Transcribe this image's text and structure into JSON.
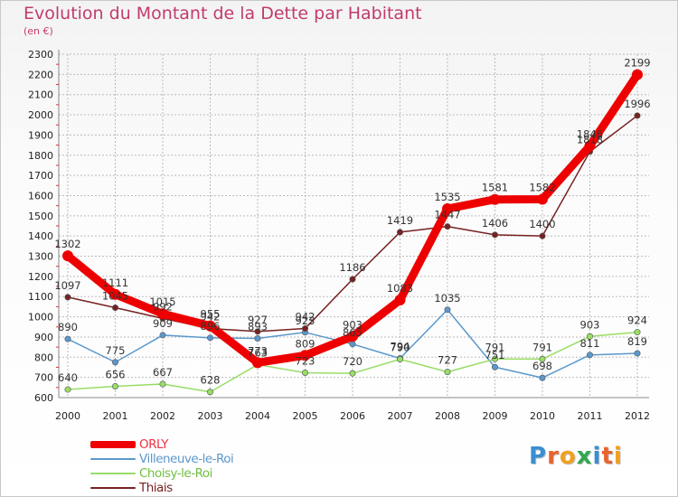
{
  "title": "Evolution du Montant de la Dette par Habitant",
  "subtitle": "(en €)",
  "logo": "Proxiti",
  "colors": {
    "title": "#c23b6e",
    "grid": "#bbbbbb",
    "axis_text": "#222222"
  },
  "chart_data": {
    "type": "line",
    "title": "Evolution du Montant de la Dette par Habitant",
    "ylabel": "(en €)",
    "xlabel": "",
    "x": [
      "2000",
      "2001",
      "2002",
      "2003",
      "2004",
      "2005",
      "2006",
      "2007",
      "2008",
      "2009",
      "2010",
      "2011",
      "2012"
    ],
    "ylim": [
      600,
      2300
    ],
    "ytick_step": 100,
    "grid": true,
    "legend_position": "bottom-left",
    "series": [
      {
        "name": "ORLY",
        "color": "#ee0000",
        "values": [
          1302,
          1111,
          1015,
          955,
          773,
          809,
          903,
          1083,
          1535,
          1581,
          1582,
          1846,
          2199
        ],
        "labels": [
          "1302",
          "1111",
          "1015",
          "955",
          "773",
          "809",
          "903",
          "1083",
          "1535",
          "1581",
          "1582",
          "1846",
          "2199"
        ]
      },
      {
        "name": "Villeneuve-le-Roi",
        "color": "#5b98cc",
        "values": [
          890,
          775,
          909,
          896,
          893,
          923,
          865,
          794,
          1035,
          751,
          698,
          811,
          819
        ],
        "labels": [
          "890",
          "775",
          "909",
          "896",
          "893",
          "923",
          "865",
          "794",
          "1035",
          "751",
          "698",
          "811",
          "819"
        ]
      },
      {
        "name": "Choisy-le-Roi",
        "color": "#99dd66",
        "values": [
          640,
          656,
          667,
          628,
          763,
          723,
          720,
          790,
          727,
          791,
          791,
          903,
          924
        ],
        "labels": [
          "640",
          "656",
          "667",
          "628",
          "763",
          "723",
          "720",
          "790",
          "727",
          "791",
          "791",
          "903",
          "924"
        ]
      },
      {
        "name": "Thiais",
        "color": "#772222",
        "values": [
          1097,
          1045,
          992,
          942,
          927,
          942,
          1186,
          1419,
          1447,
          1406,
          1400,
          1818,
          1996
        ],
        "labels": [
          "1097",
          "1045",
          "992",
          "942",
          "927",
          "942",
          "1186",
          "1419",
          "1447",
          "1406",
          "1400",
          "1818",
          "1996"
        ]
      }
    ]
  }
}
